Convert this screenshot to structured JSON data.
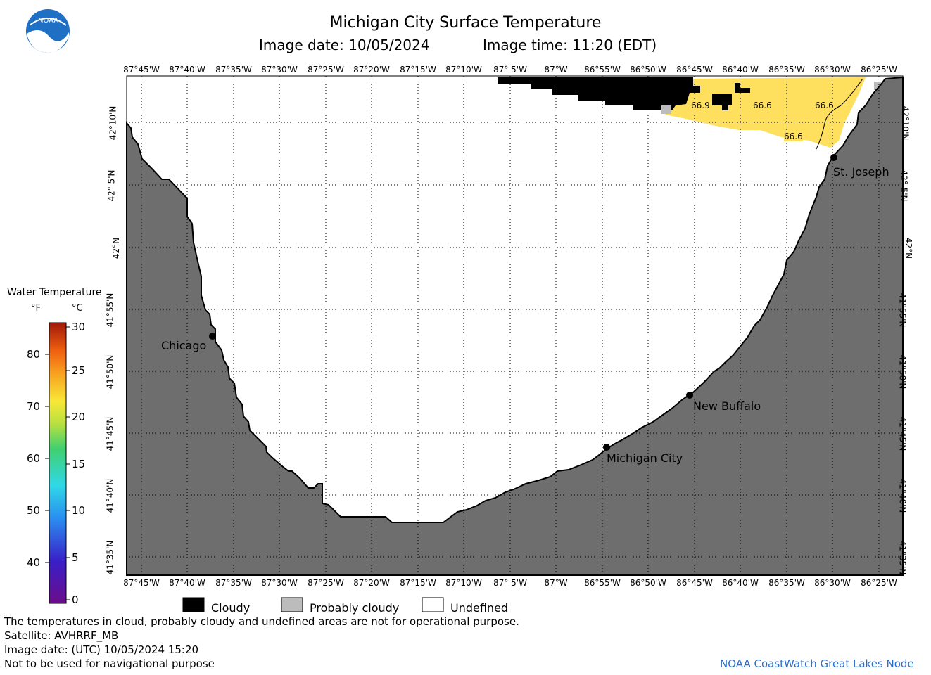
{
  "header": {
    "title": "Michigan City Surface Temperature",
    "image_date_label": "Image date: 10/05/2024",
    "image_time_label": "Image time: 11:20 (EDT)"
  },
  "logo": {
    "text": "NOAA",
    "color": "#1f6fc4"
  },
  "map": {
    "top_lon_labels": [
      "87°45'W",
      "87°40'W",
      "87°35'W",
      "87°30'W",
      "87°25'W",
      "87°20'W",
      "87°15'W",
      "87°10'W",
      "87° 5'W",
      "87°W",
      "86°55'W",
      "86°50'W",
      "86°45'W",
      "86°40'W",
      "86°35'W",
      "86°30'W",
      "86°25'W"
    ],
    "lat_labels": [
      "42°10'N",
      "42° 5'N",
      "42°N",
      "41°55'N",
      "41°50'N",
      "41°45'N",
      "41°40'N",
      "41°35'N"
    ],
    "cities": [
      {
        "name": "Chicago"
      },
      {
        "name": "Michigan City"
      },
      {
        "name": "New Buffalo"
      },
      {
        "name": "St. Joseph"
      }
    ],
    "temp_values": [
      "66.9",
      "66.6",
      "66.6",
      "66.6"
    ],
    "colors": {
      "land": "#6e6e6e",
      "water_undefined": "#ffffff",
      "cloudy": "#000000",
      "probably_cloudy": "#bcbcbc",
      "warm_water": "#ffdf5e",
      "grid": "#000000"
    }
  },
  "colorbar": {
    "title": "Water Temperature",
    "unit_f": "°F",
    "unit_c": "°C",
    "f_ticks": [
      "80",
      "70",
      "60",
      "50",
      "40"
    ],
    "c_ticks": [
      "30",
      "25",
      "20",
      "15",
      "10",
      "5",
      "0"
    ]
  },
  "legend": {
    "cloudy": "Cloudy",
    "probably_cloudy": "Probably cloudy",
    "undefined": "Undefined"
  },
  "footer": {
    "line1": "The temperatures in cloud, probably cloudy and undefined areas are not for operational purpose.",
    "line2": "Satellite: AVHRRF_MB",
    "line3": "Image date: (UTC) 10/05/2024  15:20",
    "line4": "Not to be used for navigational purpose",
    "credit": "NOAA CoastWatch Great Lakes Node"
  }
}
